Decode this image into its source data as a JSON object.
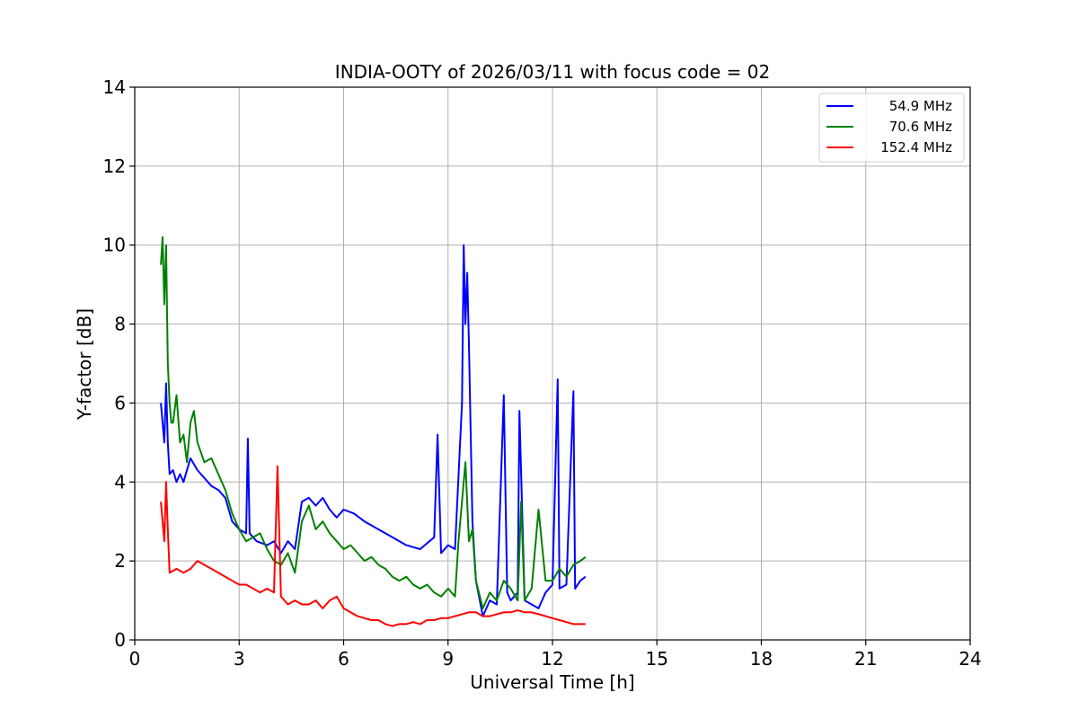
{
  "chart_data": {
    "type": "line",
    "title": "INDIA-OOTY of 2026/03/11 with focus code = 02",
    "xlabel": "Universal Time [h]",
    "ylabel": "Y-factor [dB]",
    "xlim": [
      0,
      24
    ],
    "ylim": [
      0,
      14
    ],
    "xticks": [
      0,
      3,
      6,
      9,
      12,
      15,
      18,
      21,
      24
    ],
    "yticks": [
      0,
      2,
      4,
      6,
      8,
      10,
      12,
      14
    ],
    "grid": true,
    "legend_position": "top-right",
    "series": [
      {
        "name": "54.9 MHz",
        "color": "#0000ff",
        "x": [
          0.75,
          0.8,
          0.85,
          0.9,
          0.95,
          1.0,
          1.1,
          1.2,
          1.3,
          1.4,
          1.5,
          1.6,
          1.8,
          2.0,
          2.2,
          2.4,
          2.6,
          2.8,
          3.0,
          3.2,
          3.25,
          3.3,
          3.5,
          3.8,
          4.0,
          4.2,
          4.4,
          4.6,
          4.8,
          5.0,
          5.2,
          5.4,
          5.6,
          5.8,
          6.0,
          6.3,
          6.6,
          7.0,
          7.4,
          7.8,
          8.2,
          8.6,
          8.7,
          8.8,
          9.0,
          9.2,
          9.4,
          9.45,
          9.5,
          9.55,
          9.6,
          9.7,
          9.8,
          10.0,
          10.2,
          10.4,
          10.6,
          10.7,
          10.8,
          11.0,
          11.05,
          11.2,
          11.4,
          11.6,
          11.8,
          12.0,
          12.15,
          12.2,
          12.4,
          12.6,
          12.65,
          12.8,
          12.95
        ],
        "y": [
          6.0,
          5.5,
          5.0,
          6.5,
          5.0,
          4.2,
          4.3,
          4.0,
          4.2,
          4.0,
          4.3,
          4.6,
          4.3,
          4.1,
          3.9,
          3.8,
          3.6,
          3.0,
          2.8,
          2.7,
          5.1,
          2.7,
          2.5,
          2.4,
          2.5,
          2.2,
          2.5,
          2.3,
          3.5,
          3.6,
          3.4,
          3.6,
          3.3,
          3.1,
          3.3,
          3.2,
          3.0,
          2.8,
          2.6,
          2.4,
          2.3,
          2.6,
          5.2,
          2.2,
          2.4,
          2.3,
          6.0,
          10.0,
          8.0,
          9.3,
          7.5,
          3.0,
          1.5,
          0.6,
          1.0,
          0.9,
          6.2,
          1.2,
          1.0,
          1.2,
          5.8,
          1.0,
          0.9,
          0.8,
          1.2,
          1.4,
          6.6,
          1.3,
          1.4,
          6.3,
          1.3,
          1.5,
          1.6
        ]
      },
      {
        "name": "70.6 MHz",
        "color": "#008000",
        "x": [
          0.75,
          0.8,
          0.85,
          0.9,
          0.95,
          1.0,
          1.05,
          1.1,
          1.2,
          1.3,
          1.4,
          1.5,
          1.6,
          1.7,
          1.8,
          2.0,
          2.2,
          2.4,
          2.6,
          2.8,
          3.0,
          3.2,
          3.4,
          3.6,
          3.8,
          4.0,
          4.2,
          4.4,
          4.6,
          4.8,
          5.0,
          5.2,
          5.4,
          5.6,
          5.8,
          6.0,
          6.2,
          6.4,
          6.6,
          6.8,
          7.0,
          7.2,
          7.4,
          7.6,
          7.8,
          8.0,
          8.2,
          8.4,
          8.6,
          8.8,
          9.0,
          9.2,
          9.3,
          9.4,
          9.5,
          9.6,
          9.7,
          9.8,
          10.0,
          10.2,
          10.4,
          10.6,
          10.8,
          11.0,
          11.1,
          11.2,
          11.4,
          11.6,
          11.8,
          12.0,
          12.2,
          12.4,
          12.6,
          12.8,
          12.95
        ],
        "y": [
          9.5,
          10.2,
          8.5,
          10.0,
          7.0,
          6.0,
          5.5,
          5.5,
          6.2,
          5.0,
          5.2,
          4.5,
          5.5,
          5.8,
          5.0,
          4.5,
          4.6,
          4.2,
          3.8,
          3.2,
          2.8,
          2.5,
          2.6,
          2.7,
          2.3,
          2.0,
          1.9,
          2.2,
          1.7,
          3.0,
          3.4,
          2.8,
          3.0,
          2.7,
          2.5,
          2.3,
          2.4,
          2.2,
          2.0,
          2.1,
          1.9,
          1.8,
          1.6,
          1.5,
          1.6,
          1.4,
          1.3,
          1.4,
          1.2,
          1.1,
          1.3,
          1.1,
          2.5,
          3.5,
          4.5,
          2.5,
          2.8,
          1.5,
          0.8,
          1.2,
          1.0,
          1.5,
          1.3,
          1.0,
          3.5,
          1.0,
          1.3,
          3.3,
          1.5,
          1.5,
          1.8,
          1.6,
          1.9,
          2.0,
          2.1
        ]
      },
      {
        "name": "152.4 MHz",
        "color": "#ff0000",
        "x": [
          0.75,
          0.8,
          0.85,
          0.9,
          0.95,
          1.0,
          1.2,
          1.4,
          1.6,
          1.8,
          2.0,
          2.2,
          2.4,
          2.6,
          2.8,
          3.0,
          3.2,
          3.4,
          3.6,
          3.8,
          4.0,
          4.1,
          4.2,
          4.4,
          4.6,
          4.8,
          5.0,
          5.2,
          5.4,
          5.6,
          5.8,
          6.0,
          6.2,
          6.4,
          6.6,
          6.8,
          7.0,
          7.2,
          7.4,
          7.6,
          7.8,
          8.0,
          8.2,
          8.4,
          8.6,
          8.8,
          9.0,
          9.2,
          9.4,
          9.6,
          9.8,
          10.0,
          10.2,
          10.4,
          10.6,
          10.8,
          11.0,
          11.2,
          11.4,
          11.6,
          11.8,
          12.0,
          12.2,
          12.4,
          12.6,
          12.8,
          12.95
        ],
        "y": [
          3.5,
          3.0,
          2.5,
          4.0,
          2.8,
          1.7,
          1.8,
          1.7,
          1.8,
          2.0,
          1.9,
          1.8,
          1.7,
          1.6,
          1.5,
          1.4,
          1.4,
          1.3,
          1.2,
          1.3,
          1.2,
          4.4,
          1.1,
          0.9,
          1.0,
          0.9,
          0.9,
          1.0,
          0.8,
          1.0,
          1.1,
          0.8,
          0.7,
          0.6,
          0.55,
          0.5,
          0.5,
          0.4,
          0.35,
          0.4,
          0.4,
          0.45,
          0.4,
          0.5,
          0.5,
          0.55,
          0.55,
          0.6,
          0.65,
          0.7,
          0.7,
          0.6,
          0.6,
          0.65,
          0.7,
          0.7,
          0.75,
          0.7,
          0.7,
          0.65,
          0.6,
          0.55,
          0.5,
          0.45,
          0.4,
          0.4,
          0.4
        ]
      }
    ]
  }
}
